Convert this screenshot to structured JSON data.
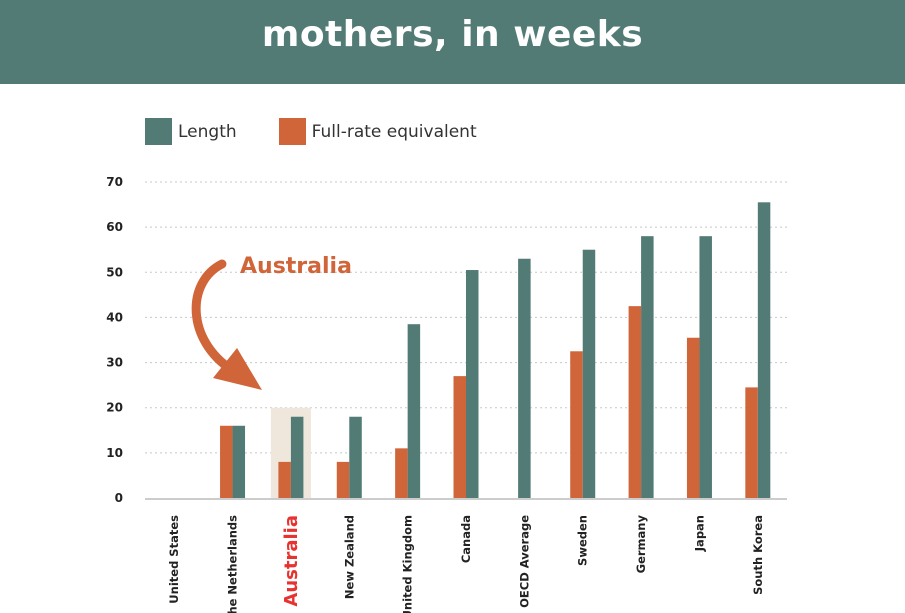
{
  "header": {
    "title": "mothers, in weeks"
  },
  "legend": [
    {
      "label": "Length",
      "color": "#527b76"
    },
    {
      "label": "Full-rate equivalent",
      "color": "#d1653a"
    }
  ],
  "chart_data": {
    "type": "bar",
    "categories": [
      "United States",
      "The Netherlands",
      "Australia",
      "New Zealand",
      "United Kingdom",
      "Canada",
      "OECD Average",
      "Sweden",
      "Germany",
      "Japan",
      "South Korea"
    ],
    "series": [
      {
        "name": "Full-rate equivalent",
        "color": "#d1653a",
        "values": [
          0,
          16,
          8,
          8,
          11,
          27,
          0,
          32.5,
          42.5,
          35.5,
          24.5
        ]
      },
      {
        "name": "Length",
        "color": "#527b76",
        "values": [
          0,
          16,
          18,
          18,
          38.5,
          50.5,
          53,
          55,
          58,
          58,
          65.5
        ]
      }
    ],
    "ylim": [
      0,
      70
    ],
    "yticks": [
      0,
      10,
      20,
      30,
      40,
      50,
      60,
      70
    ],
    "highlight_category": "Australia",
    "highlight_value": 20,
    "highlight_color": "#e8322f",
    "annotation": "Australia",
    "grid": true
  }
}
